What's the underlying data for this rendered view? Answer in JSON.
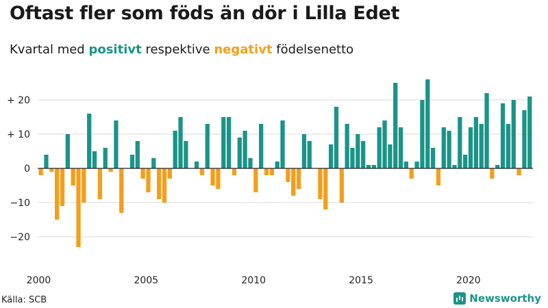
{
  "chart_data": {
    "type": "bar",
    "title": "Oftast fler som föds än dör i Lilla Edet",
    "subtitle_prefix": "Kvartal med",
    "subtitle_positive": "positivt",
    "subtitle_middle": "respektive",
    "subtitle_negative": "negativt",
    "subtitle_suffix": "födelsenetto",
    "xlabel": "",
    "ylabel": "",
    "x_start": 2000,
    "x_ticks": [
      2000,
      2005,
      2010,
      2015,
      2020
    ],
    "x_tick_labels": [
      "2000",
      "2005",
      "2010",
      "2015",
      "2020"
    ],
    "y_ticks": [
      20,
      10,
      0,
      -10,
      -20
    ],
    "y_tick_labels": [
      "+ 20",
      "+ 10",
      "0",
      "−10",
      "−20"
    ],
    "ylim": [
      -27,
      30
    ],
    "grid": true,
    "legend": "none",
    "values": [
      -2,
      4,
      -1,
      -15,
      -11,
      10,
      -5,
      -23,
      -10,
      16,
      5,
      -9,
      6,
      -1,
      14,
      -13,
      0,
      4,
      8,
      -3,
      -7,
      3,
      -9,
      -10,
      -3,
      11,
      15,
      8,
      0,
      2,
      -2,
      13,
      -5,
      -6,
      15,
      15,
      -2,
      9,
      11,
      3,
      -7,
      13,
      -2,
      -2,
      2,
      14,
      -4,
      -8,
      -6,
      10,
      8,
      0,
      -9,
      -12,
      7,
      18,
      -10,
      13,
      6,
      10,
      8,
      1,
      1,
      12,
      14,
      7,
      25,
      12,
      2,
      -3,
      2,
      20,
      26,
      6,
      -5,
      12,
      11,
      1,
      15,
      4,
      12,
      15,
      13,
      22,
      -3,
      1,
      19,
      13,
      20,
      -2,
      17,
      21
    ],
    "colors": {
      "positive": "#1a9488",
      "negative": "#f59e1b",
      "grid": "#d9d9d9",
      "zero": "#222222"
    }
  },
  "source": "Källa: SCB",
  "brand": "Newsworthy"
}
